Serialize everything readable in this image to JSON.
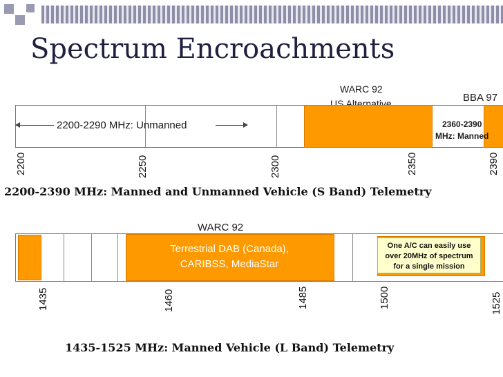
{
  "title": "Spectrum Encroachments",
  "s_band": {
    "warc_label_1": "WARC 92",
    "warc_label_2": "US Alternative",
    "bba_label": "BBA 97",
    "unmanned_label": "2200-2290 MHz: Unmanned",
    "manned_note_1": "2360-2390",
    "manned_note_2": "MHz: Manned",
    "ticks": [
      "2200",
      "2250",
      "2300",
      "2350",
      "2390"
    ],
    "caption": "2200-2390 MHz: Manned and Unmanned Vehicle (S Band) Telemetry"
  },
  "l_band": {
    "warc_label": "WARC 92",
    "dab_line_1": "Terrestrial DAB (Canada),",
    "dab_line_2": "CARIBSS, MediaStar",
    "note_line_1": "One A/C  can easily use",
    "note_line_2": "over 20MHz of spectrum",
    "note_line_3": "for a single mission",
    "ticks": [
      "1435",
      "1460",
      "1485",
      "1500",
      "1525"
    ],
    "caption": "1435-1525 MHz: Manned Vehicle (L Band) Telemetry"
  },
  "colors": {
    "orange": "#ff9900",
    "note_fill": "#ffffcc",
    "title": "#1f1f3f"
  }
}
